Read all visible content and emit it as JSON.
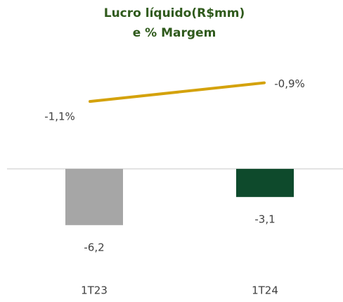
{
  "chart_data": {
    "type": "combo",
    "title": [
      "Lucro líquido(R$mm)",
      "e % Margem"
    ],
    "categories": [
      "1T23",
      "1T24"
    ],
    "ylim": [
      -8,
      10
    ],
    "y2lim": [
      -2.6,
      -0.85
    ],
    "series": [
      {
        "type": "bar",
        "colors": [
          "#a6a6a6",
          "#0e4a2c"
        ],
        "values": [
          -6.2,
          -3.1
        ],
        "value_labels": [
          "-6,2",
          "-3,1"
        ]
      },
      {
        "type": "line",
        "axis": "y2",
        "color": "#d4a20c",
        "values": [
          -1.1,
          -0.9
        ],
        "value_labels": [
          "-1,1%",
          "-0,9%"
        ]
      }
    ]
  }
}
